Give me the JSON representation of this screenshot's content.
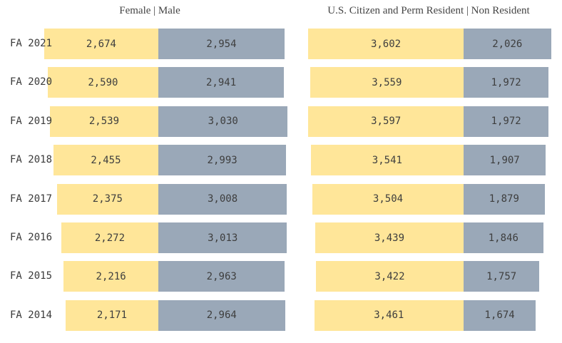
{
  "colors": {
    "female_citizen_bar": "#FFE699",
    "male_nonresident_bar": "#9AA8B8",
    "value_text": "#3e3e3e",
    "row_label_text": "#3a3a3a",
    "title_text": "#444444",
    "background": "#ffffff"
  },
  "chart_data": [
    {
      "type": "bar",
      "orientation": "horizontal-diverging",
      "title": "Female | Male",
      "grid": false,
      "legend_position": "title",
      "value_label_format": "thousands-comma",
      "categories": [
        "FA 2021",
        "FA 2020",
        "FA 2019",
        "FA 2018",
        "FA 2017",
        "FA 2016",
        "FA 2015",
        "FA 2014"
      ],
      "series": [
        {
          "name": "Female",
          "key": "female",
          "color": "#FFE699",
          "values": [
            2674,
            2590,
            2539,
            2455,
            2375,
            2272,
            2216,
            2171
          ]
        },
        {
          "name": "Male",
          "key": "male",
          "color": "#9AA8B8",
          "values": [
            2954,
            2941,
            3030,
            2993,
            3008,
            3013,
            2963,
            2964
          ]
        }
      ]
    },
    {
      "type": "bar",
      "orientation": "horizontal-diverging",
      "title": "U.S. Citizen and Perm Resident | Non Resident",
      "grid": false,
      "legend_position": "title",
      "value_label_format": "thousands-comma",
      "categories": [
        "FA 2021",
        "FA 2020",
        "FA 2019",
        "FA 2018",
        "FA 2017",
        "FA 2016",
        "FA 2015",
        "FA 2014"
      ],
      "series": [
        {
          "name": "U.S. Citizen and Perm Resident",
          "key": "citizen-perm-resident",
          "color": "#FFE699",
          "values": [
            3602,
            3559,
            3597,
            3541,
            3504,
            3439,
            3422,
            3461
          ]
        },
        {
          "name": "Non Resident",
          "key": "non-resident",
          "color": "#9AA8B8",
          "values": [
            2026,
            1972,
            1972,
            1907,
            1879,
            1846,
            1757,
            1674
          ]
        }
      ]
    }
  ]
}
